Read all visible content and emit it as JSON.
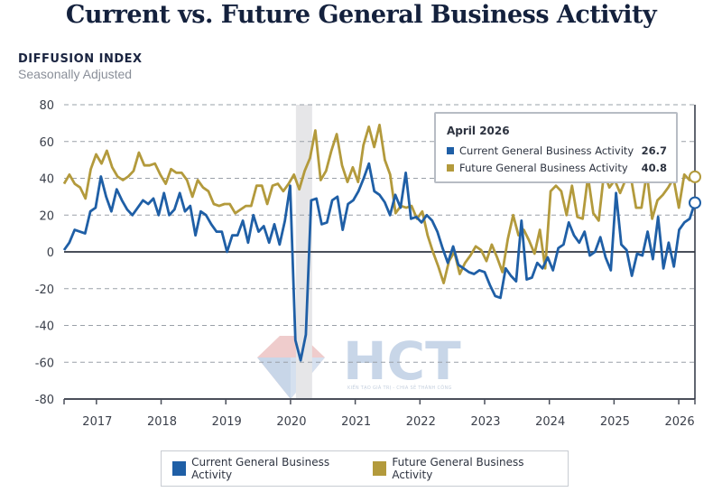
{
  "header": {
    "title": "Current vs. Future General Business Activity",
    "index_label": "DIFFUSION INDEX",
    "adjustment_label": "Seasonally Adjusted"
  },
  "tooltip": {
    "date": "April 2026",
    "rows": [
      {
        "label": "Current General Business Activity",
        "value": "26.7",
        "color": "#1f5fa6"
      },
      {
        "label": "Future General Business Activity",
        "value": "40.8",
        "color": "#b39a3c"
      }
    ]
  },
  "legend": {
    "items": [
      {
        "label": "Current General Business Activity",
        "color": "#1f5fa6"
      },
      {
        "label": "Future General Business Activity",
        "color": "#b39a3c"
      }
    ]
  },
  "watermark": {
    "brand": "HCT",
    "tagline": "KIẾN TẠO GIÁ TRỊ - CHIA SẺ THÀNH CÔNG"
  },
  "chart_data": {
    "type": "line",
    "title": "Current vs. Future General Business Activity",
    "ylabel": "DIFFUSION INDEX, Seasonally Adjusted",
    "xlabel": "",
    "ylim": [
      -80,
      80
    ],
    "yticks": [
      80,
      60,
      40,
      20,
      0,
      -20,
      -40,
      -60,
      -80
    ],
    "ytick_labels": [
      "80",
      "60",
      "40",
      "20",
      "0",
      "-20",
      "-40",
      "-60",
      "-80"
    ],
    "x_start": "2016-07",
    "x_end": "2026-04",
    "xtick_labels": [
      "2017",
      "2018",
      "2019",
      "2020",
      "2021",
      "2022",
      "2023",
      "2024",
      "2025",
      "2026"
    ],
    "grid": true,
    "legend_position": "bottom",
    "recession_shading": {
      "start": "2020-02",
      "end": "2020-04"
    },
    "highlight": {
      "date": "April 2026",
      "current": 26.7,
      "future": 40.8
    },
    "series": [
      {
        "name": "Current General Business Activity",
        "color": "#1f5fa6",
        "values": [
          1,
          5,
          12,
          11,
          10,
          22,
          24,
          41,
          30,
          22,
          34,
          28,
          23,
          20,
          24,
          28,
          26,
          29,
          20,
          32,
          20,
          23,
          32,
          22,
          25,
          9,
          22,
          20,
          15,
          11,
          11,
          0,
          9,
          9,
          17,
          5,
          20,
          11,
          14,
          5,
          15,
          4,
          17,
          36,
          -48,
          -59,
          -45,
          28,
          29,
          15,
          16,
          28,
          30,
          12,
          26,
          28,
          33,
          40,
          48,
          33,
          31,
          27,
          20,
          31,
          24,
          43,
          18,
          19,
          16,
          20,
          17,
          11,
          2,
          -6,
          3,
          -7,
          -9,
          -11,
          -12,
          -10,
          -11,
          -18,
          -24,
          -25,
          -9,
          -13,
          -16,
          17,
          -15,
          -14,
          -6,
          -9,
          -3,
          -10,
          2,
          4,
          16,
          9,
          5,
          11,
          -2,
          0,
          8,
          -3,
          -10,
          32,
          4,
          1,
          -13,
          -1,
          -2,
          11,
          -4,
          19,
          -9,
          5,
          -8,
          12,
          16,
          18,
          26.7
        ]
      },
      {
        "name": "Future General Business Activity",
        "color": "#b39a3c",
        "values": [
          37,
          42,
          37,
          35,
          29,
          45,
          53,
          48,
          55,
          46,
          41,
          39,
          41,
          44,
          54,
          47,
          47,
          48,
          42,
          37,
          45,
          43,
          43,
          39,
          30,
          39,
          35,
          33,
          26,
          25,
          26,
          26,
          21,
          23,
          25,
          25,
          36,
          36,
          26,
          36,
          37,
          33,
          37,
          42,
          34,
          44,
          51,
          66,
          39,
          44,
          55,
          64,
          47,
          38,
          46,
          38,
          58,
          68,
          57,
          69,
          50,
          42,
          21,
          25,
          24,
          25,
          18,
          22,
          9,
          0,
          -8,
          -17,
          -5,
          0,
          -12,
          -6,
          -2,
          3,
          1,
          -5,
          4,
          -3,
          -11,
          7,
          20,
          9,
          12,
          6,
          -1,
          12,
          -9,
          33,
          36,
          33,
          20,
          36,
          19,
          18,
          41,
          21,
          17,
          43,
          35,
          39,
          32,
          39,
          41,
          24,
          24,
          43,
          18,
          28,
          31,
          35,
          40,
          24,
          42,
          39,
          40.8
        ]
      }
    ]
  }
}
